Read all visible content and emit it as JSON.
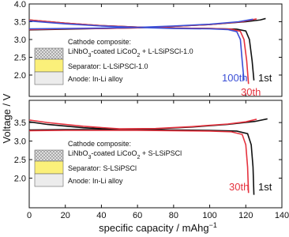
{
  "chart_data": [
    {
      "type": "line",
      "ylabel": "Voltage / V",
      "xlim": [
        0,
        140
      ],
      "xticks": [
        0,
        20,
        40,
        60,
        80,
        100,
        120,
        140
      ],
      "show_xtick_labels": false,
      "ylim": [
        1.4,
        4.0
      ],
      "yticks": [
        {
          "value": 2,
          "label": "2.0"
        },
        2.5,
        {
          "value": 3,
          "label": "3.0"
        },
        3.5,
        {
          "value": 4,
          "label": "4.0"
        }
      ],
      "annotations": {
        "cathode": "Cathode composite:",
        "cathode_material": [
          "LiNbO",
          "3",
          "-coated  LiCoO",
          "2",
          " + L-LSiPSCl-1.0"
        ],
        "separator": "Separator: L-LSiPSCl-1.0",
        "anode": "Anode: In-Li alloy"
      },
      "series": [
        {
          "name": "1st",
          "color": "#111111",
          "x": [
            0,
            20,
            40,
            60,
            80,
            100,
            120,
            128,
            131,
            null,
            0,
            20,
            40,
            60,
            80,
            100,
            115,
            120,
            122,
            123.5,
            124.5
          ],
          "values": [
            3.27,
            3.29,
            3.31,
            3.33,
            3.37,
            3.42,
            3.5,
            3.55,
            3.59,
            null,
            3.55,
            3.46,
            3.39,
            3.35,
            3.32,
            3.31,
            3.29,
            3.24,
            3.0,
            2.4,
            1.85
          ]
        },
        {
          "name": "30th",
          "color": "#e5323e",
          "x": [
            0,
            20,
            40,
            60,
            80,
            100,
            118,
            126,
            null,
            0,
            20,
            40,
            60,
            80,
            100,
            112,
            117,
            119,
            120.5,
            121.5
          ],
          "values": [
            3.28,
            3.3,
            3.31,
            3.33,
            3.37,
            3.42,
            3.5,
            3.58,
            null,
            3.55,
            3.46,
            3.39,
            3.35,
            3.32,
            3.31,
            3.29,
            3.23,
            3.0,
            2.4,
            1.75
          ]
        },
        {
          "name": "100th",
          "color": "#3b4fd6",
          "x": [
            0,
            20,
            40,
            60,
            80,
            100,
            116,
            124,
            null,
            0,
            20,
            40,
            60,
            80,
            100,
            110,
            115,
            117,
            118,
            119
          ],
          "values": [
            3.3,
            3.31,
            3.32,
            3.34,
            3.38,
            3.43,
            3.5,
            3.57,
            null,
            3.52,
            3.44,
            3.38,
            3.34,
            3.31,
            3.3,
            3.28,
            3.22,
            3.0,
            2.4,
            1.85
          ]
        }
      ]
    },
    {
      "type": "line",
      "xlabel": [
        "specific capacity / mAhg",
        "−1"
      ],
      "xlim": [
        0,
        140
      ],
      "xticks": [
        0,
        20,
        40,
        60,
        80,
        100,
        120,
        140
      ],
      "show_xtick_labels": true,
      "ylim": [
        1.2,
        4.1
      ],
      "yticks": [
        {
          "value": 2,
          "label": "2.0"
        },
        2.5,
        {
          "value": 3,
          "label": "3.0"
        },
        3.5
      ],
      "annotations": {
        "cathode": "Cathode composite:",
        "cathode_material": [
          "LiNbO",
          "3",
          "-coated  LiCoO",
          "2",
          " + S-LSiPSCl"
        ],
        "separator": "Separator: S-LSiPSCl",
        "anode": "Anode: In-Li alloy"
      },
      "series": [
        {
          "name": "1st",
          "color": "#111111",
          "x": [
            0,
            10,
            30,
            50,
            70,
            90,
            110,
            125,
            132,
            null,
            0,
            20,
            40,
            60,
            80,
            100,
            115,
            121,
            123,
            124,
            124.5
          ],
          "values": [
            3.52,
            3.45,
            3.36,
            3.31,
            3.33,
            3.38,
            3.45,
            3.53,
            3.6,
            null,
            3.3,
            3.31,
            3.31,
            3.31,
            3.3,
            3.29,
            3.27,
            3.2,
            2.9,
            2.3,
            1.55
          ]
        },
        {
          "name": "30th",
          "color": "#e5323e",
          "x": [
            0,
            10,
            30,
            50,
            70,
            90,
            110,
            120,
            126,
            null,
            0,
            20,
            40,
            60,
            80,
            100,
            112,
            118,
            120,
            121,
            121.5
          ],
          "values": [
            3.57,
            3.5,
            3.4,
            3.33,
            3.34,
            3.39,
            3.46,
            3.52,
            3.59,
            null,
            3.28,
            3.29,
            3.29,
            3.29,
            3.28,
            3.27,
            3.25,
            3.18,
            2.9,
            2.3,
            1.6
          ]
        }
      ]
    }
  ]
}
